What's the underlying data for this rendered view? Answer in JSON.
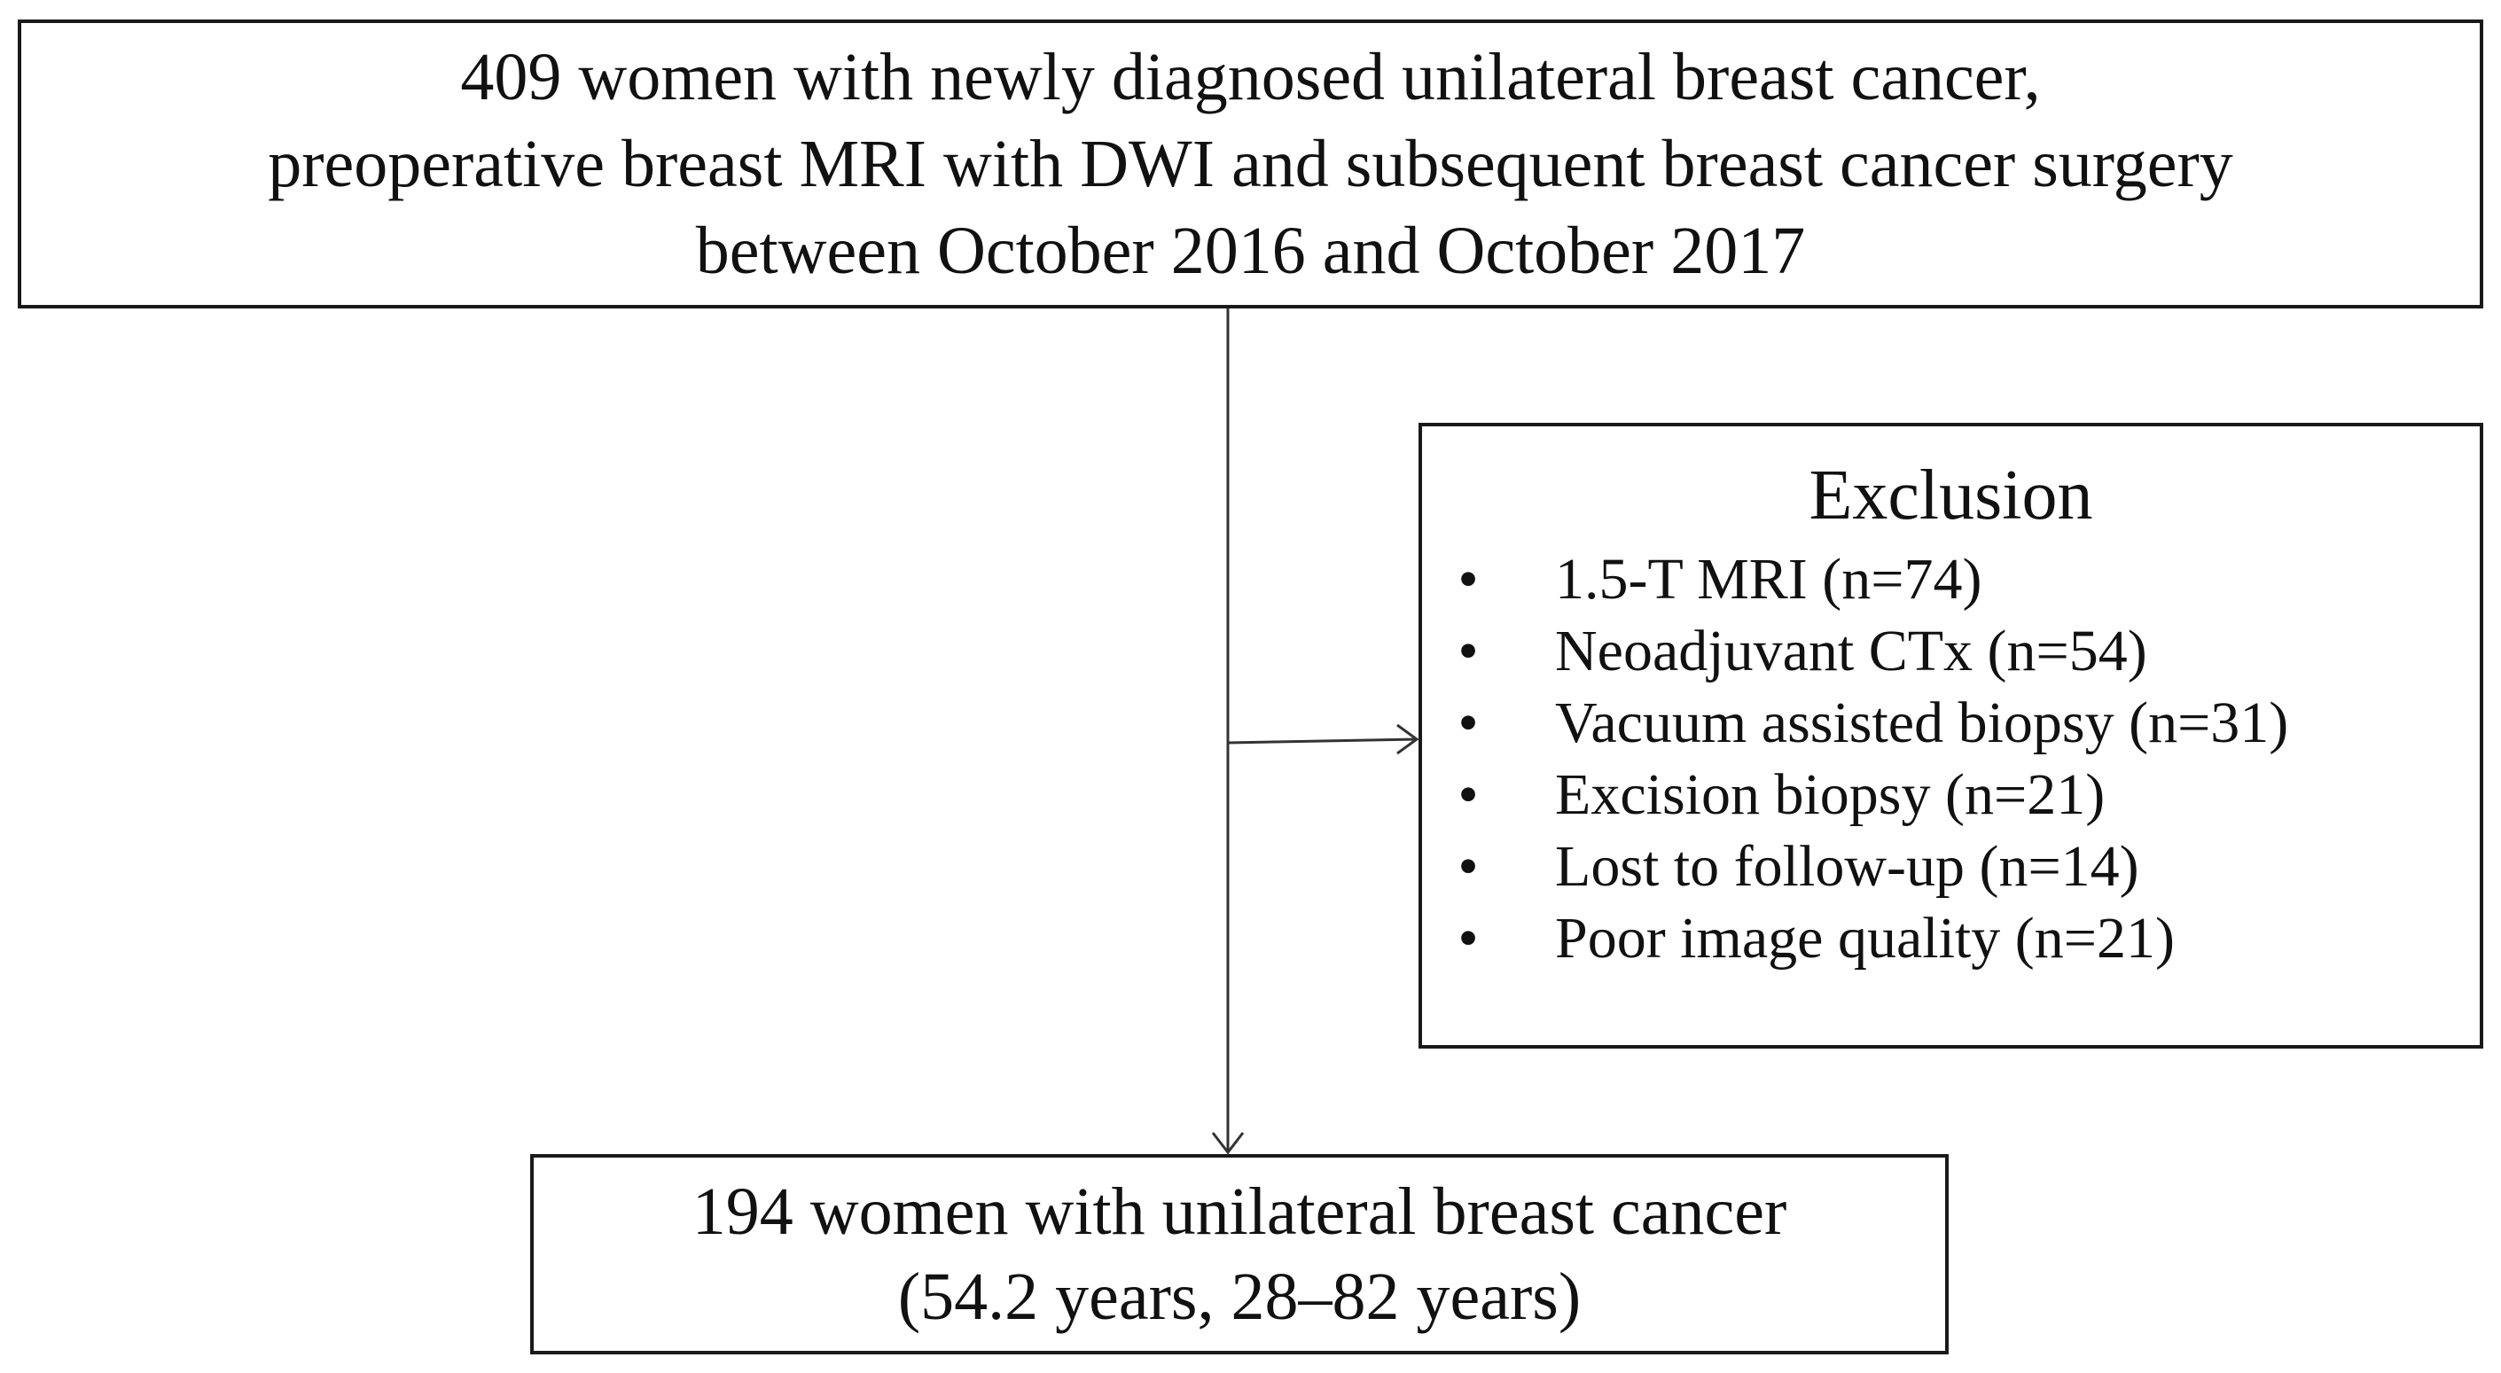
{
  "top_box": {
    "lines": [
      "409 women with newly diagnosed unilateral breast cancer,",
      "preoperative breast MRI with DWI and subsequent breast cancer surgery",
      "between October 2016 and October 2017"
    ]
  },
  "exclusion_box": {
    "title": "Exclusion",
    "bullet": "•",
    "items": [
      "1.5-T MRI (n=74)",
      "Neoadjuvant CTx (n=54)",
      "Vacuum assisted biopsy (n=31)",
      "Excision biopsy (n=21)",
      "Lost to follow-up (n=14)",
      "Poor image quality (n=21)"
    ]
  },
  "bottom_box": {
    "lines": [
      "194 women with unilateral breast cancer",
      "(54.2 years, 28–82 years)"
    ]
  },
  "colors": {
    "stroke": "#1a1a1a",
    "text": "#111111",
    "background": "#ffffff"
  }
}
